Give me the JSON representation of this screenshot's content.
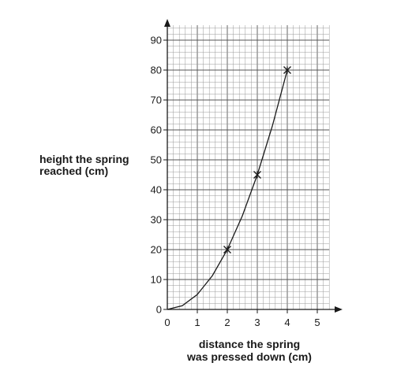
{
  "chart_data": {
    "type": "line",
    "xlabel_lines": [
      "distance the spring",
      "was pressed down (cm)"
    ],
    "ylabel_lines": [
      "height the spring",
      "reached (cm)"
    ],
    "xlim": [
      0,
      5.4
    ],
    "ylim": [
      0,
      95
    ],
    "x_ticks": [
      0,
      1,
      2,
      3,
      4,
      5
    ],
    "y_ticks": [
      0,
      10,
      20,
      30,
      40,
      50,
      60,
      70,
      80,
      90
    ],
    "grid": true,
    "points": [
      {
        "x": 2,
        "y": 20
      },
      {
        "x": 3,
        "y": 45
      },
      {
        "x": 4,
        "y": 80
      }
    ],
    "curve": [
      {
        "x": 0,
        "y": 0
      },
      {
        "x": 0.5,
        "y": 1.25
      },
      {
        "x": 1,
        "y": 5
      },
      {
        "x": 1.5,
        "y": 11.25
      },
      {
        "x": 2,
        "y": 20
      },
      {
        "x": 2.5,
        "y": 31.25
      },
      {
        "x": 3,
        "y": 45
      },
      {
        "x": 3.5,
        "y": 61.25
      },
      {
        "x": 4,
        "y": 80
      }
    ],
    "marker": "asterisk"
  }
}
